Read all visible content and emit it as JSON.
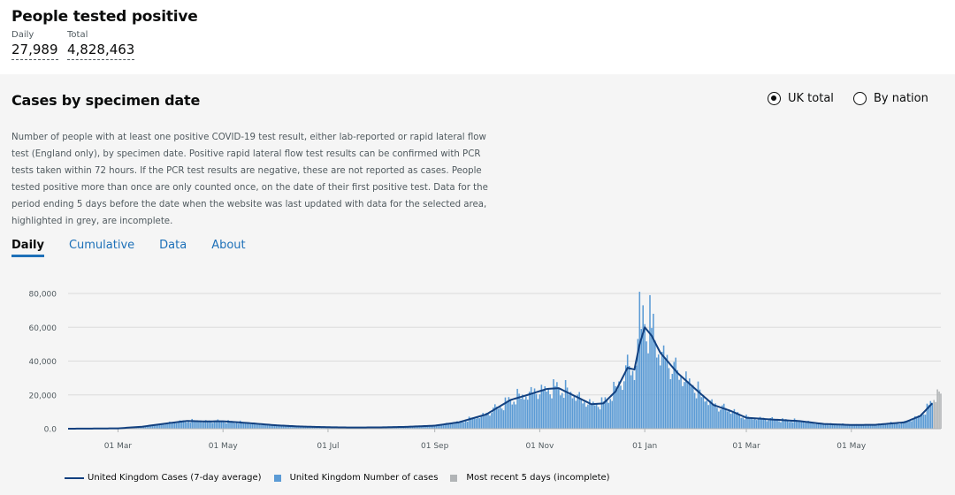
{
  "header": {
    "title": "People tested positive",
    "daily_label": "Daily",
    "daily_value": "27,989",
    "total_label": "Total",
    "total_value": "4,828,463"
  },
  "panel": {
    "title": "Cases by specimen date",
    "radio_uk": "UK total",
    "radio_nation": "By nation",
    "selected": "UK total",
    "description": "Number of people with at least one positive COVID-19 test result, either lab-reported or rapid lateral flow test (England only), by specimen date. Positive rapid lateral flow test results can be confirmed with PCR tests taken within 72 hours. If the PCR test results are negative, these are not reported as cases. People tested positive more than once are only counted once, on the date of their first positive test. Data for the period ending 5 days before the date when the website was last updated with data for the selected area, highlighted in grey, are incomplete.",
    "tabs": [
      "Daily",
      "Cumulative",
      "Data",
      "About"
    ],
    "active_tab": "Daily"
  },
  "chart_data": {
    "type": "bar",
    "x_range": [
      "2020-02-01",
      "2021-06-22"
    ],
    "x_ticks": [
      "01 Mar",
      "01 May",
      "01 Jul",
      "01 Sep",
      "01 Nov",
      "01 Jan",
      "01 Mar",
      "01 May"
    ],
    "y_ticks": [
      "0.0",
      "20,000",
      "40,000",
      "60,000",
      "80,000"
    ],
    "ylim": [
      0,
      80000
    ],
    "grid": true,
    "legend_position": "bottom",
    "colors": {
      "average": "#12407f",
      "bars": "#5b9bd5",
      "incomplete": "#b1b4b6"
    },
    "series": [
      {
        "name": "United Kingdom Cases (7-day average)",
        "kind": "line",
        "points": [
          [
            "2020-02-01",
            0
          ],
          [
            "2020-03-01",
            200
          ],
          [
            "2020-03-15",
            1200
          ],
          [
            "2020-04-01",
            3500
          ],
          [
            "2020-04-10",
            4600
          ],
          [
            "2020-04-20",
            4300
          ],
          [
            "2020-05-01",
            4400
          ],
          [
            "2020-05-15",
            3400
          ],
          [
            "2020-06-01",
            2000
          ],
          [
            "2020-06-15",
            1300
          ],
          [
            "2020-07-01",
            900
          ],
          [
            "2020-07-15",
            700
          ],
          [
            "2020-08-01",
            800
          ],
          [
            "2020-08-15",
            1100
          ],
          [
            "2020-09-01",
            1800
          ],
          [
            "2020-09-15",
            3800
          ],
          [
            "2020-10-01",
            8500
          ],
          [
            "2020-10-15",
            17000
          ],
          [
            "2020-10-25",
            20000
          ],
          [
            "2020-11-05",
            23500
          ],
          [
            "2020-11-12",
            24000
          ],
          [
            "2020-11-22",
            19000
          ],
          [
            "2020-12-01",
            14500
          ],
          [
            "2020-12-08",
            15000
          ],
          [
            "2020-12-15",
            22000
          ],
          [
            "2020-12-22",
            36000
          ],
          [
            "2020-12-26",
            35000
          ],
          [
            "2020-12-29",
            50000
          ],
          [
            "2021-01-01",
            60000
          ],
          [
            "2021-01-05",
            55000
          ],
          [
            "2021-01-10",
            45000
          ],
          [
            "2021-01-20",
            33000
          ],
          [
            "2021-02-01",
            22000
          ],
          [
            "2021-02-10",
            14000
          ],
          [
            "2021-02-20",
            10500
          ],
          [
            "2021-03-01",
            6500
          ],
          [
            "2021-03-15",
            5500
          ],
          [
            "2021-04-01",
            4500
          ],
          [
            "2021-04-15",
            2800
          ],
          [
            "2021-05-01",
            2200
          ],
          [
            "2021-05-15",
            2300
          ],
          [
            "2021-06-01",
            3800
          ],
          [
            "2021-06-10",
            7500
          ],
          [
            "2021-06-17",
            15000
          ]
        ]
      },
      {
        "name": "United Kingdom Number of cases",
        "kind": "bar"
      },
      {
        "name": "Most recent 5 days (incomplete)",
        "kind": "bar"
      }
    ],
    "peaks": [
      [
        "2020-12-29",
        81000
      ],
      [
        "2021-01-04",
        79000
      ],
      [
        "2020-12-31",
        73000
      ],
      [
        "2021-01-06",
        68000
      ]
    ]
  }
}
